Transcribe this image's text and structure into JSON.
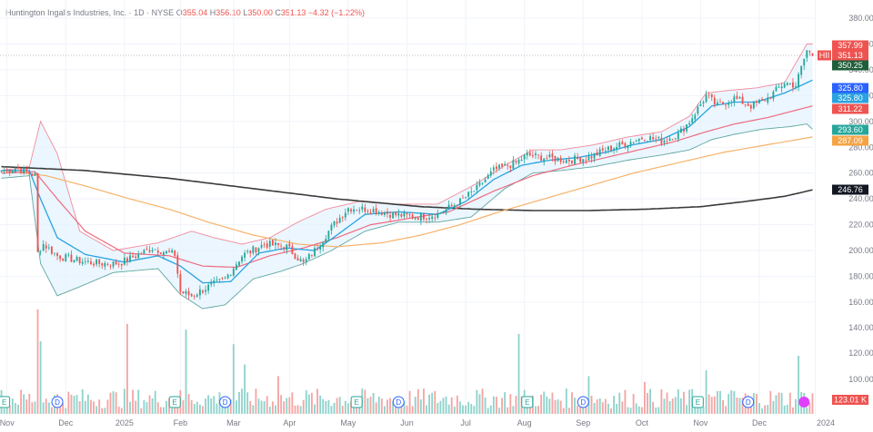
{
  "header": {
    "company": "Huntington Ingalls Industries, Inc.",
    "interval": "1D",
    "exchange": "NYSE",
    "open_label": "O",
    "open": "355.04",
    "high_label": "H",
    "high": "356.10",
    "low_label": "L",
    "low": "350.00",
    "close_label": "C",
    "close": "351.13",
    "change": "−4.32 (−1.22%)",
    "separator": "·"
  },
  "colors": {
    "up": "#26a69a",
    "down": "#ef5350",
    "bb_line": "#f28b9a",
    "bb_fill": "#e3f2fd",
    "ma_fast": "#29a3e0",
    "ma_mid": "#ef6b80",
    "ma_slow": "#f6b26b",
    "ma_long": "#3a3a3a",
    "grid": "#f0f3fa"
  },
  "chart_data": {
    "type": "candlestick",
    "title": "Huntington Ingalls Industries, Inc. · 1D · NYSE",
    "ylim": [
      145,
      395
    ],
    "y_ticks": [
      160,
      180,
      200,
      220,
      240,
      260,
      280,
      300,
      320,
      340,
      360,
      380
    ],
    "y_tick_labels": [
      "160.00",
      "180.00",
      "200.00",
      "220.00",
      "240.00",
      "260.00",
      "280.00",
      "300.00",
      "320.00",
      "340.00",
      "360.00",
      "380.00"
    ],
    "volume_ticks": [
      100,
      120,
      140
    ],
    "volume_tick_labels": [
      "100.00",
      "120.00",
      "140.00"
    ],
    "x_tick_labels": [
      "Nov",
      "Dec",
      "2025",
      "Feb",
      "Mar",
      "Apr",
      "May",
      "Jun",
      "Jul",
      "Aug",
      "Sep",
      "Oct",
      "Nov",
      "Dec",
      "2024"
    ],
    "x_tick_index": [
      2,
      23,
      44,
      64,
      83,
      103,
      124,
      145,
      166,
      187,
      208,
      229,
      250,
      271,
      291
    ],
    "close_anchors": [
      [
        0,
        262
      ],
      [
        6,
        264
      ],
      [
        12,
        258
      ],
      [
        13,
        198
      ],
      [
        15,
        205
      ],
      [
        20,
        196
      ],
      [
        28,
        192
      ],
      [
        35,
        190
      ],
      [
        42,
        190
      ],
      [
        48,
        196
      ],
      [
        54,
        202
      ],
      [
        60,
        198
      ],
      [
        62,
        197
      ],
      [
        64,
        168
      ],
      [
        68,
        165
      ],
      [
        74,
        172
      ],
      [
        80,
        178
      ],
      [
        86,
        196
      ],
      [
        94,
        205
      ],
      [
        102,
        203
      ],
      [
        108,
        190
      ],
      [
        112,
        200
      ],
      [
        118,
        218
      ],
      [
        124,
        233
      ],
      [
        132,
        232
      ],
      [
        140,
        228
      ],
      [
        148,
        226
      ],
      [
        156,
        228
      ],
      [
        164,
        238
      ],
      [
        170,
        248
      ],
      [
        176,
        262
      ],
      [
        184,
        268
      ],
      [
        188,
        274
      ],
      [
        194,
        272
      ],
      [
        202,
        270
      ],
      [
        210,
        272
      ],
      [
        216,
        278
      ],
      [
        222,
        282
      ],
      [
        230,
        288
      ],
      [
        236,
        285
      ],
      [
        242,
        290
      ],
      [
        246,
        300
      ],
      [
        252,
        320
      ],
      [
        256,
        312
      ],
      [
        262,
        318
      ],
      [
        268,
        312
      ],
      [
        274,
        318
      ],
      [
        280,
        330
      ],
      [
        284,
        328
      ],
      [
        288,
        355
      ],
      [
        290,
        351.13
      ]
    ],
    "total_bars": 291,
    "bollinger": {
      "upper_anchors": [
        [
          0,
          262
        ],
        [
          10,
          265
        ],
        [
          14,
          300
        ],
        [
          20,
          275
        ],
        [
          28,
          215
        ],
        [
          40,
          200
        ],
        [
          56,
          206
        ],
        [
          68,
          215
        ],
        [
          76,
          210
        ],
        [
          86,
          205
        ],
        [
          96,
          210
        ],
        [
          106,
          222
        ],
        [
          116,
          232
        ],
        [
          128,
          238
        ],
        [
          140,
          236
        ],
        [
          156,
          236
        ],
        [
          170,
          252
        ],
        [
          180,
          266
        ],
        [
          190,
          278
        ],
        [
          200,
          278
        ],
        [
          212,
          282
        ],
        [
          224,
          288
        ],
        [
          236,
          292
        ],
        [
          246,
          304
        ],
        [
          252,
          322
        ],
        [
          260,
          324
        ],
        [
          270,
          326
        ],
        [
          280,
          330
        ],
        [
          288,
          360
        ]
      ],
      "lower_anchors": [
        [
          0,
          256
        ],
        [
          10,
          258
        ],
        [
          14,
          190
        ],
        [
          20,
          165
        ],
        [
          28,
          172
        ],
        [
          40,
          183
        ],
        [
          56,
          186
        ],
        [
          64,
          166
        ],
        [
          72,
          155
        ],
        [
          80,
          158
        ],
        [
          90,
          178
        ],
        [
          100,
          184
        ],
        [
          108,
          190
        ],
        [
          118,
          200
        ],
        [
          130,
          215
        ],
        [
          142,
          222
        ],
        [
          156,
          222
        ],
        [
          168,
          226
        ],
        [
          180,
          248
        ],
        [
          190,
          260
        ],
        [
          200,
          262
        ],
        [
          212,
          265
        ],
        [
          224,
          270
        ],
        [
          236,
          274
        ],
        [
          246,
          278
        ],
        [
          254,
          286
        ],
        [
          262,
          290
        ],
        [
          272,
          294
        ],
        [
          282,
          296
        ],
        [
          288,
          298
        ],
        [
          290,
          294
        ]
      ]
    },
    "series": [
      {
        "name": "",
        "value": "325.80",
        "tag_color": "#2962ff"
      },
      {
        "name": "",
        "value": "325.80",
        "tag_color": "#29a3e0"
      },
      {
        "name": "",
        "value": "311.22",
        "tag_color": "#ef5350"
      },
      {
        "name": "",
        "value": "293.60",
        "tag_color": "#26a69a"
      },
      {
        "name": "",
        "value": "287.09",
        "tag_color": "#f6a345"
      },
      {
        "name": "",
        "value": "246.76",
        "tag_color": "#131722"
      }
    ],
    "ma_fast_anchors": [
      [
        0,
        262
      ],
      [
        10,
        262
      ],
      [
        14,
        240
      ],
      [
        20,
        210
      ],
      [
        30,
        197
      ],
      [
        44,
        191
      ],
      [
        56,
        196
      ],
      [
        64,
        188
      ],
      [
        72,
        175
      ],
      [
        82,
        176
      ],
      [
        92,
        198
      ],
      [
        102,
        202
      ],
      [
        112,
        200
      ],
      [
        120,
        212
      ],
      [
        130,
        228
      ],
      [
        142,
        230
      ],
      [
        156,
        228
      ],
      [
        166,
        238
      ],
      [
        176,
        255
      ],
      [
        186,
        266
      ],
      [
        196,
        270
      ],
      [
        206,
        272
      ],
      [
        216,
        276
      ],
      [
        226,
        282
      ],
      [
        236,
        286
      ],
      [
        246,
        296
      ],
      [
        254,
        312
      ],
      [
        262,
        315
      ],
      [
        270,
        315
      ],
      [
        280,
        322
      ],
      [
        290,
        332
      ]
    ],
    "ma_mid_anchors": [
      [
        0,
        260
      ],
      [
        12,
        261
      ],
      [
        20,
        240
      ],
      [
        30,
        215
      ],
      [
        44,
        198
      ],
      [
        60,
        196
      ],
      [
        72,
        188
      ],
      [
        84,
        187
      ],
      [
        96,
        196
      ],
      [
        108,
        202
      ],
      [
        120,
        210
      ],
      [
        132,
        220
      ],
      [
        146,
        225
      ],
      [
        160,
        230
      ],
      [
        176,
        246
      ],
      [
        190,
        258
      ],
      [
        204,
        266
      ],
      [
        216,
        272
      ],
      [
        228,
        278
      ],
      [
        240,
        284
      ],
      [
        252,
        292
      ],
      [
        262,
        298
      ],
      [
        274,
        303
      ],
      [
        290,
        312
      ]
    ],
    "ma_slow_anchors": [
      [
        0,
        262
      ],
      [
        16,
        258
      ],
      [
        30,
        250
      ],
      [
        46,
        240
      ],
      [
        60,
        232
      ],
      [
        74,
        222
      ],
      [
        90,
        212
      ],
      [
        106,
        205
      ],
      [
        120,
        203
      ],
      [
        136,
        206
      ],
      [
        150,
        212
      ],
      [
        164,
        220
      ],
      [
        178,
        230
      ],
      [
        194,
        240
      ],
      [
        210,
        250
      ],
      [
        226,
        260
      ],
      [
        242,
        268
      ],
      [
        258,
        276
      ],
      [
        274,
        282
      ],
      [
        290,
        288
      ]
    ],
    "ma_long_anchors": [
      [
        0,
        265
      ],
      [
        30,
        262
      ],
      [
        60,
        256
      ],
      [
        90,
        248
      ],
      [
        120,
        240
      ],
      [
        150,
        234
      ],
      [
        170,
        232
      ],
      [
        190,
        231
      ],
      [
        210,
        231
      ],
      [
        230,
        232
      ],
      [
        250,
        234
      ],
      [
        266,
        238
      ],
      [
        280,
        242
      ],
      [
        290,
        247
      ]
    ],
    "earnings_markers": [
      {
        "label": "E",
        "index": 1
      },
      {
        "label": "E",
        "index": 62
      },
      {
        "label": "E",
        "index": 127
      },
      {
        "label": "E",
        "index": 188
      },
      {
        "label": "E",
        "index": 249
      }
    ],
    "dividend_markers": [
      {
        "label": "D",
        "index": 20
      },
      {
        "label": "D",
        "index": 80
      },
      {
        "label": "D",
        "index": 142
      },
      {
        "label": "D",
        "index": 208
      },
      {
        "label": "D",
        "index": 267
      }
    ],
    "price_tags": [
      {
        "label": "",
        "value": "357.99",
        "color": "#ef5350"
      },
      {
        "label": "HII",
        "value": "351.13",
        "color": "#ef5350"
      },
      {
        "label": "",
        "value": "350.25",
        "color": "#1e5e3a"
      }
    ],
    "volume_label": "123.01 K",
    "volume_spikes": [
      [
        13,
        72
      ],
      [
        14,
        50
      ],
      [
        45,
        62
      ],
      [
        66,
        58
      ],
      [
        83,
        48
      ],
      [
        87,
        34
      ],
      [
        99,
        26
      ],
      [
        185,
        55
      ],
      [
        210,
        26
      ],
      [
        230,
        22
      ],
      [
        252,
        30
      ],
      [
        285,
        40
      ]
    ]
  }
}
